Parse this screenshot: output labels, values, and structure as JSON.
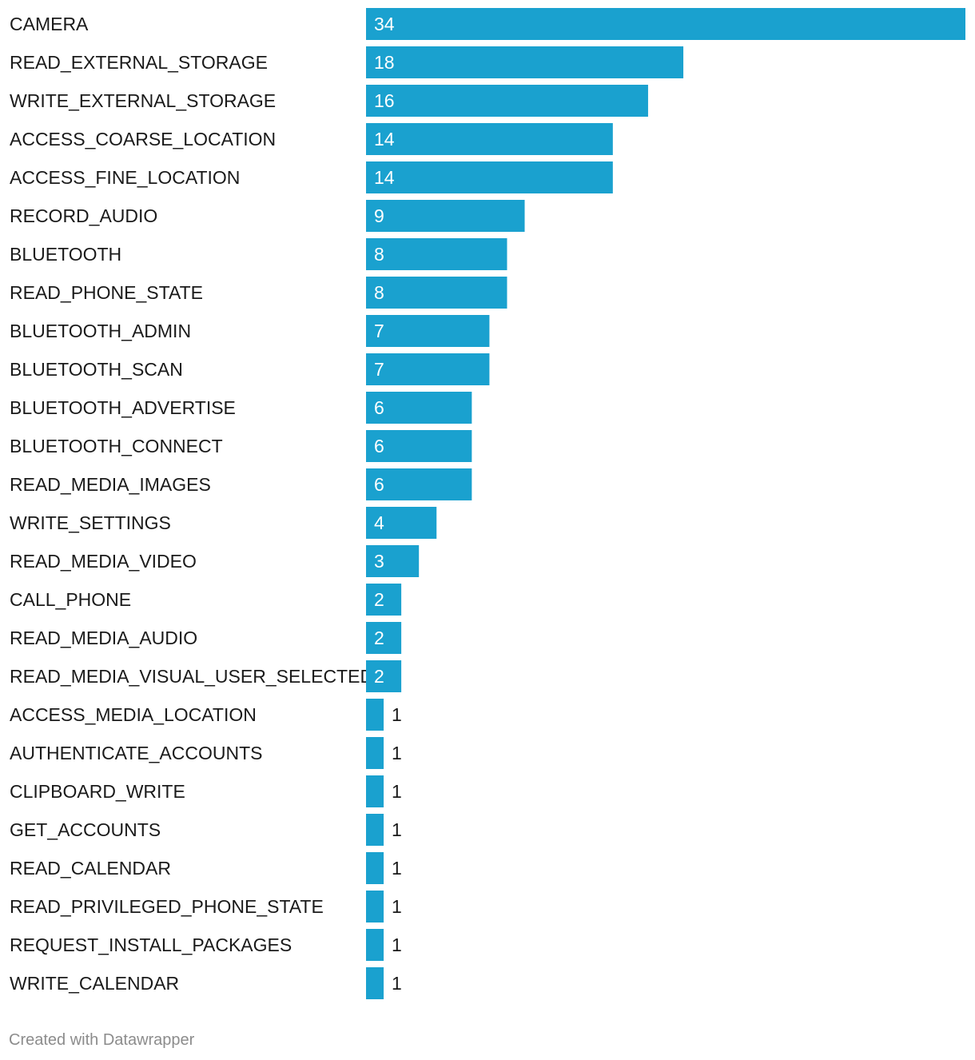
{
  "chart_data": {
    "type": "bar",
    "orientation": "horizontal",
    "categories": [
      "CAMERA",
      "READ_EXTERNAL_STORAGE",
      "WRITE_EXTERNAL_STORAGE",
      "ACCESS_COARSE_LOCATION",
      "ACCESS_FINE_LOCATION",
      "RECORD_AUDIO",
      "BLUETOOTH",
      "READ_PHONE_STATE",
      "BLUETOOTH_ADMIN",
      "BLUETOOTH_SCAN",
      "BLUETOOTH_ADVERTISE",
      "BLUETOOTH_CONNECT",
      "READ_MEDIA_IMAGES",
      "WRITE_SETTINGS",
      "READ_MEDIA_VIDEO",
      "CALL_PHONE",
      "READ_MEDIA_AUDIO",
      "READ_MEDIA_VISUAL_USER_SELECTED",
      "ACCESS_MEDIA_LOCATION",
      "AUTHENTICATE_ACCOUNTS",
      "CLIPBOARD_WRITE",
      "GET_ACCOUNTS",
      "READ_CALENDAR",
      "READ_PRIVILEGED_PHONE_STATE",
      "REQUEST_INSTALL_PACKAGES",
      "WRITE_CALENDAR"
    ],
    "values": [
      34,
      18,
      16,
      14,
      14,
      9,
      8,
      8,
      7,
      7,
      6,
      6,
      6,
      4,
      3,
      2,
      2,
      2,
      1,
      1,
      1,
      1,
      1,
      1,
      1,
      1
    ],
    "title": "",
    "xlabel": "",
    "ylabel": "",
    "xlim": [
      0,
      34
    ],
    "grid": false,
    "legend": "none",
    "data_labels": true,
    "bar_color": "#1aa1cf",
    "label_inside_color": "#ffffff",
    "label_outside_color": "#1a1a1a"
  },
  "footer": {
    "credit": "Created with Datawrapper"
  }
}
